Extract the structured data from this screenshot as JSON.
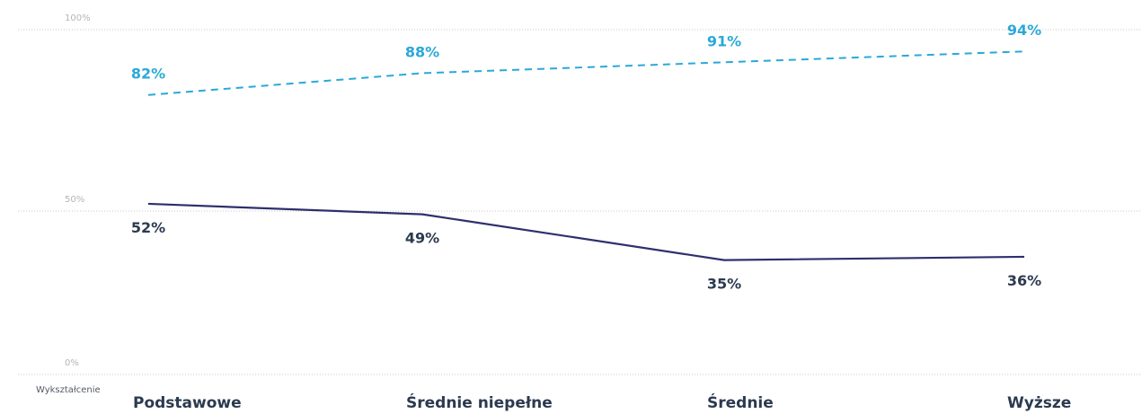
{
  "chart_data": {
    "type": "line",
    "x_axis_title": "Wykształcenie",
    "categories": [
      "Podstawowe",
      "Średnie niepełne",
      "Średnie",
      "Wyższe"
    ],
    "y_ticks": [
      {
        "value": 0,
        "label": "0%"
      },
      {
        "value": 50,
        "label": "50%"
      },
      {
        "value": 100,
        "label": "100%"
      }
    ],
    "ylim": [
      0,
      100
    ],
    "grid": true,
    "legend": "none",
    "series": [
      {
        "values": [
          82,
          88,
          91,
          94
        ],
        "labels": [
          "82%",
          "88%",
          "91%",
          "94%"
        ],
        "color": "#2ba8d8",
        "style": "dashed",
        "label_position": "above"
      },
      {
        "values": [
          52,
          49,
          35,
          36
        ],
        "labels": [
          "52%",
          "49%",
          "35%",
          "36%"
        ],
        "color": "#2e2f6e",
        "label_text_color": "#2b3a4f",
        "style": "solid",
        "label_position": "below"
      }
    ]
  }
}
